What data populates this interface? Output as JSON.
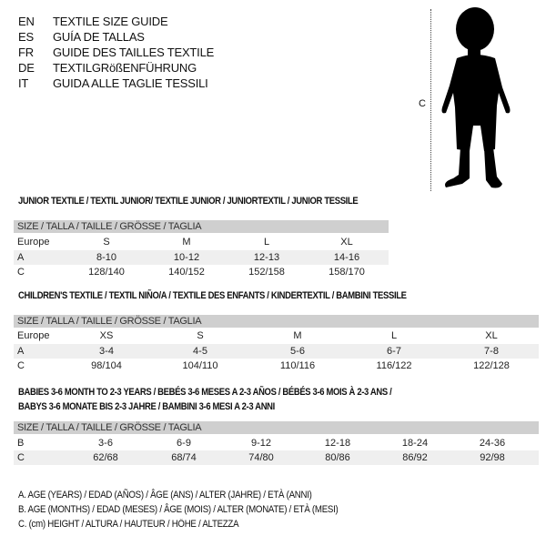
{
  "languages": [
    {
      "code": "EN",
      "label": "TEXTILE SIZE GUIDE"
    },
    {
      "code": "ES",
      "label": "GUÍA DE TALLAS"
    },
    {
      "code": "FR",
      "label": "GUIDE DES TAILLES TEXTILE"
    },
    {
      "code": "DE",
      "label": "TEXTILGRößENFÜHRUNG"
    },
    {
      "code": "IT",
      "label": "GUIDA ALLE TAGLIE TESSILI"
    }
  ],
  "figure": {
    "measure_label": "C"
  },
  "tables": [
    {
      "title": "JUNIOR TEXTILE / TEXTIL JUNIOR/ TEXTILE JUNIOR / JUNIORTEXTIL / JUNIOR TESSILE",
      "header": "SIZE / TALLA / TAILLE / GRÖSSE / TAGLIA",
      "rows": [
        {
          "label": "Europe",
          "values": [
            "S",
            "M",
            "L",
            "XL"
          ]
        },
        {
          "label": "A",
          "values": [
            "8-10",
            "10-12",
            "12-13",
            "14-16"
          ]
        },
        {
          "label": "C",
          "values": [
            "128/140",
            "140/152",
            "152/158",
            "158/170"
          ]
        }
      ]
    },
    {
      "title": "CHILDREN'S TEXTILE / TEXTIL NIÑO/A / TEXTILE DES ENFANTS / KINDERTEXTIL / BAMBINI TESSILE",
      "header": "SIZE / TALLA / TAILLE / GRÖSSE / TAGLIA",
      "rows": [
        {
          "label": "Europe",
          "values": [
            "XS",
            "S",
            "M",
            "L",
            "XL"
          ]
        },
        {
          "label": "A",
          "values": [
            "3-4",
            "4-5",
            "5-6",
            "6-7",
            "7-8"
          ]
        },
        {
          "label": "C",
          "values": [
            "98/104",
            "104/110",
            "110/116",
            "116/122",
            "122/128"
          ]
        }
      ]
    },
    {
      "title": "BABIES 3-6 MONTH TO 2-3 YEARS / BEBÉS 3-6 MESES A 2-3 AÑOS / BÉBÉS 3-6 MOIS À 2-3 ANS /",
      "title2": "BABYS 3-6 MONATE BIS 2-3 JAHRE / BAMBINI 3-6 MESI A 2-3 ANNI",
      "header": "SIZE / TALLA / TAILLE / GRÖSSE / TAGLIA",
      "rows": [
        {
          "label": "B",
          "values": [
            "3-6",
            "6-9",
            "9-12",
            "12-18",
            "18-24",
            "24-36"
          ]
        },
        {
          "label": "C",
          "values": [
            "62/68",
            "68/74",
            "74/80",
            "80/86",
            "86/92",
            "92/98"
          ]
        }
      ]
    }
  ],
  "notes": [
    "A. AGE (YEARS) / EDAD (AÑOS) / ÂGE (ANS) / ALTER (JAHRE) / ETÀ (ANNI)",
    "B. AGE (MONTHS) / EDAD (MESES) / ÂGE (MOIS) / ALTER (MONATE) / ETÀ (MESI)",
    "C. (cm) HEIGHT / ALTURA / HAUTEUR / HÖHE / ALTEZZA"
  ]
}
